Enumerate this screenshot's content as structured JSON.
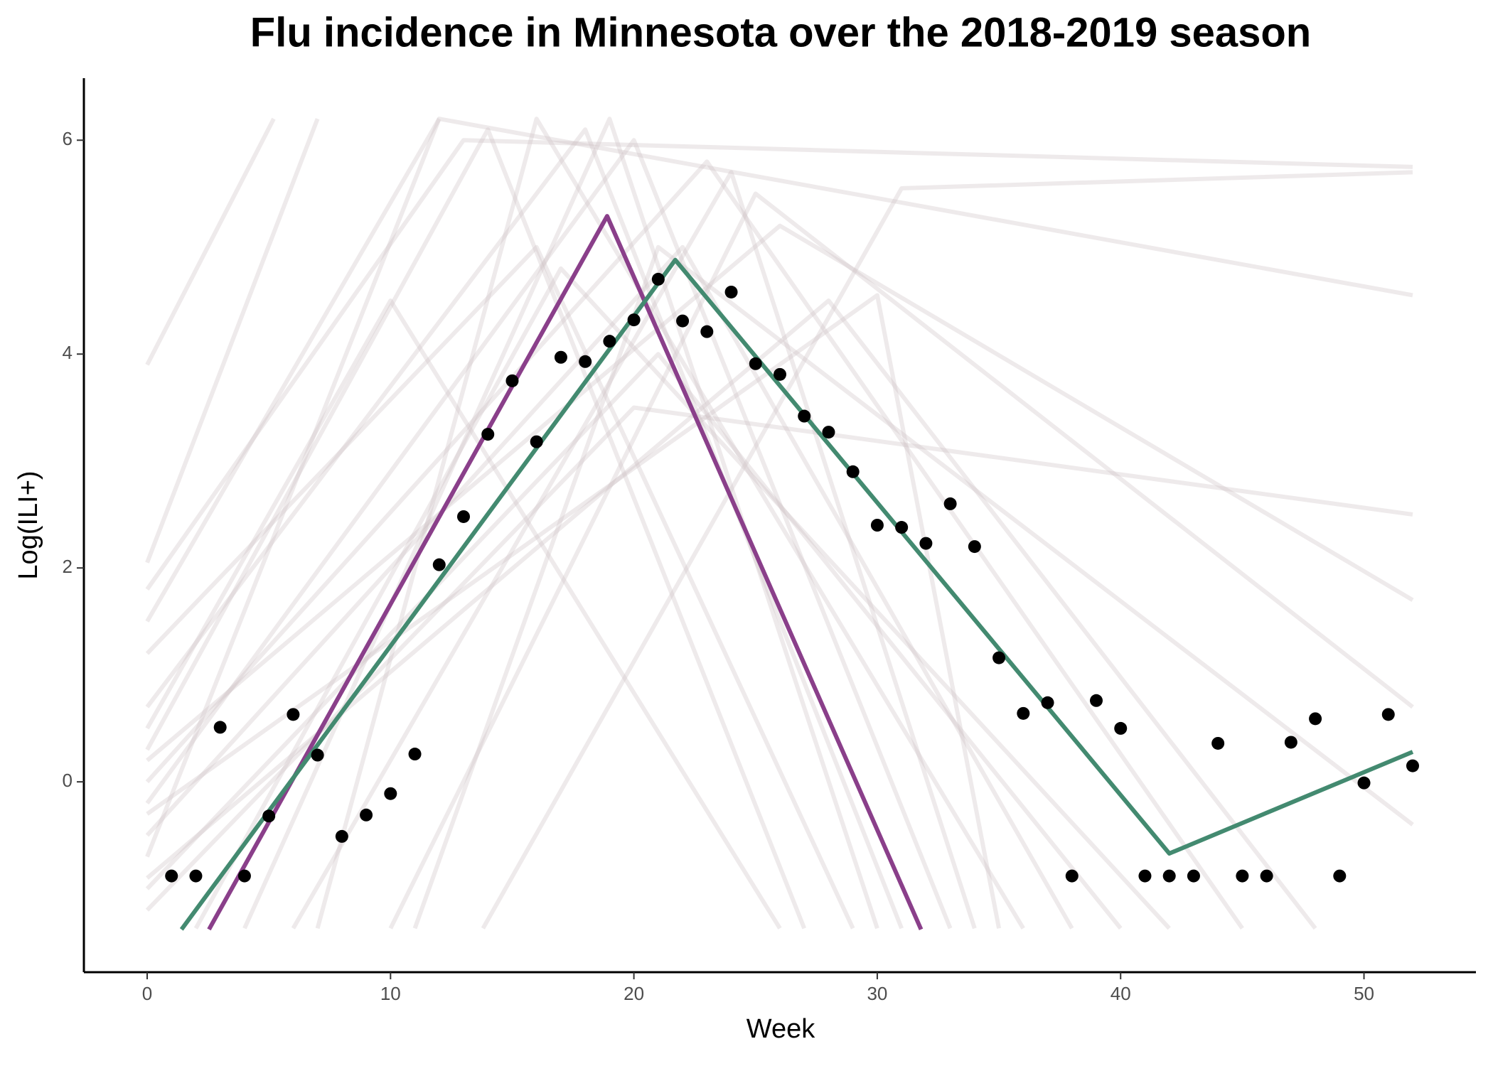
{
  "chart_data": {
    "type": "scatter",
    "title": "Flu incidence in Minnesota over the 2018-2019 season",
    "x_label": "Week",
    "y_label": "Log(ILI+)",
    "xlim": [
      -2.6,
      54.6
    ],
    "ylim": [
      -1.78,
      6.58
    ],
    "xticks": [
      0,
      10,
      20,
      30,
      40,
      50
    ],
    "yticks": [
      0,
      2,
      4,
      6
    ],
    "point_color": "#000000",
    "x": [
      1,
      2,
      3,
      4,
      5,
      6,
      7,
      8,
      9,
      10,
      11,
      12,
      13,
      14,
      15,
      16,
      17,
      18,
      19,
      20,
      21,
      22,
      23,
      24,
      25,
      26,
      27,
      28,
      29,
      30,
      31,
      32,
      33,
      34,
      35,
      36,
      37,
      38,
      39,
      40,
      41,
      42,
      43,
      44,
      45,
      46,
      47,
      48,
      49,
      50,
      51,
      52
    ],
    "values": [
      -0.88,
      -0.88,
      0.51,
      -0.88,
      -0.32,
      0.63,
      0.25,
      -0.51,
      -0.31,
      -0.11,
      0.26,
      2.03,
      2.48,
      3.25,
      3.75,
      3.18,
      3.97,
      3.93,
      4.12,
      4.32,
      4.7,
      4.31,
      4.21,
      4.58,
      3.91,
      3.81,
      3.42,
      3.27,
      2.9,
      2.4,
      2.38,
      2.23,
      2.6,
      2.2,
      1.16,
      0.64,
      0.74,
      -0.88,
      0.76,
      0.5,
      -0.88,
      -0.88,
      -0.88,
      0.36,
      -0.88,
      -0.88,
      0.37,
      0.59,
      -0.88,
      -0.01,
      0.63,
      0.15
    ],
    "lines": [
      {
        "color": "#8a3f8a",
        "x": [
          2.54,
          18.9,
          31.8
        ],
        "values": [
          -1.38,
          5.29,
          -1.38
        ]
      },
      {
        "color": "#438a70",
        "x": [
          1.41,
          21.7,
          42.0,
          52.0
        ],
        "values": [
          -1.38,
          4.88,
          -0.67,
          0.28
        ]
      }
    ],
    "background_color": "#cfc4c5",
    "background_lines": [
      {
        "x": [
          0,
          5.2
        ],
        "values": [
          3.9,
          6.2
        ]
      },
      {
        "x": [
          0,
          7
        ],
        "values": [
          2.05,
          6.2
        ]
      },
      {
        "x": [
          0,
          12
        ],
        "values": [
          1.5,
          6.2
        ]
      },
      {
        "x": [
          0,
          18,
          31
        ],
        "values": [
          0.7,
          6.1,
          -1.37
        ]
      },
      {
        "x": [
          0,
          14,
          27
        ],
        "values": [
          0.3,
          6.1,
          -1.37
        ]
      },
      {
        "x": [
          0,
          20,
          33
        ],
        "values": [
          -0.2,
          6.0,
          -1.37
        ]
      },
      {
        "x": [
          0,
          22,
          38
        ],
        "values": [
          -0.5,
          5.0,
          -1.37
        ]
      },
      {
        "x": [
          0,
          16,
          29
        ],
        "values": [
          1.2,
          5.0,
          -1.37
        ]
      },
      {
        "x": [
          0,
          21,
          40
        ],
        "values": [
          -1.0,
          4.0,
          -1.37
        ]
      },
      {
        "x": [
          0,
          23,
          45
        ],
        "values": [
          0.0,
          5.8,
          -1.37
        ]
      },
      {
        "x": [
          4,
          19,
          30
        ],
        "values": [
          -1.37,
          6.2,
          -1.37
        ]
      },
      {
        "x": [
          7,
          16,
          36
        ],
        "values": [
          -1.37,
          6.2,
          -1.37
        ]
      },
      {
        "x": [
          10,
          25,
          52
        ],
        "values": [
          -1.37,
          5.5,
          0.7
        ]
      },
      {
        "x": [
          13.8,
          31,
          52
        ],
        "values": [
          -1.37,
          5.55,
          5.7
        ]
      },
      {
        "x": [
          0,
          13,
          52
        ],
        "values": [
          1.8,
          6.0,
          5.75
        ]
      },
      {
        "x": [
          0,
          12,
          52
        ],
        "values": [
          -0.7,
          6.2,
          4.55
        ]
      },
      {
        "x": [
          0,
          20,
          52
        ],
        "values": [
          -1.2,
          3.5,
          2.5
        ]
      },
      {
        "x": [
          0,
          26,
          52
        ],
        "values": [
          0.2,
          5.2,
          1.7
        ]
      },
      {
        "x": [
          2,
          17,
          42
        ],
        "values": [
          -1.37,
          4.8,
          -1.37
        ]
      },
      {
        "x": [
          0,
          28,
          48
        ],
        "values": [
          -0.9,
          4.5,
          -1.37
        ]
      },
      {
        "x": [
          6,
          24,
          34
        ],
        "values": [
          -1.37,
          5.7,
          -1.37
        ]
      },
      {
        "x": [
          0,
          10,
          26
        ],
        "values": [
          0.5,
          4.5,
          -1.37
        ]
      },
      {
        "x": [
          11,
          21,
          52
        ],
        "values": [
          -1.37,
          5.0,
          -0.4
        ]
      },
      {
        "x": [
          0,
          30,
          35
        ],
        "values": [
          -0.3,
          4.55,
          -1.37
        ]
      }
    ]
  }
}
